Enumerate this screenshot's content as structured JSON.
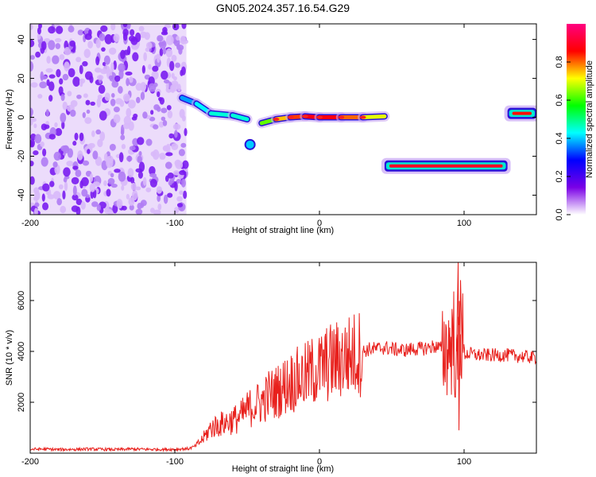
{
  "title": "GN05.2024.357.16.54.G29",
  "chart_data": [
    {
      "type": "heatmap",
      "panel": "spectrogram",
      "xlabel": "Height of straight line (km)",
      "ylabel": "Frequency (Hz)",
      "xlim": [
        -200,
        150
      ],
      "ylim": [
        -50,
        48
      ],
      "x_ticks": [
        -200,
        -100,
        0,
        100
      ],
      "y_ticks": [
        -40,
        -20,
        0,
        20,
        40
      ],
      "grid": false,
      "colorbar": {
        "label": "Normalized spectral amplitude",
        "range": [
          0,
          1
        ],
        "ticks": [
          0.0,
          0.2,
          0.4,
          0.6,
          0.8
        ],
        "colormap": [
          "#ffffff",
          "#7a00e6",
          "#0000ff",
          "#00ffff",
          "#00ff00",
          "#ffff00",
          "#ff0000",
          "#ff0080"
        ]
      },
      "features": [
        {
          "name": "noise",
          "x": [
            -200,
            -92
          ],
          "freq_range": [
            -50,
            48
          ],
          "amplitude": 0.1
        },
        {
          "name": "signal",
          "points": [
            {
              "x": -95,
              "f": 10,
              "a": 0.35
            },
            {
              "x": -85,
              "f": 7,
              "a": 0.4
            },
            {
              "x": -75,
              "f": 2,
              "a": 0.45
            },
            {
              "x": -60,
              "f": 1,
              "a": 0.45
            },
            {
              "x": -50,
              "f": -1,
              "a": 0.45
            },
            {
              "x": -48,
              "f": -14,
              "a": 0.4
            },
            {
              "x": -40,
              "f": -3,
              "a": 0.55
            },
            {
              "x": -30,
              "f": -1,
              "a": 0.7
            },
            {
              "x": -20,
              "f": 0,
              "a": 0.8
            },
            {
              "x": -10,
              "f": 0.5,
              "a": 0.85
            },
            {
              "x": 0,
              "f": 0,
              "a": 0.9
            },
            {
              "x": 15,
              "f": 0,
              "a": 0.85
            },
            {
              "x": 30,
              "f": 0,
              "a": 0.75
            },
            {
              "x": 45,
              "f": 0.5,
              "a": 0.65
            }
          ]
        },
        {
          "name": "band-low",
          "x": [
            45,
            130
          ],
          "f": -25,
          "amplitude": 0.9
        },
        {
          "name": "band-right",
          "x": [
            130,
            150
          ],
          "f": 2,
          "amplitude": 0.85
        }
      ]
    },
    {
      "type": "line",
      "panel": "snr",
      "xlabel": "Height of straight line (km)",
      "ylabel": "SNR (10 * v/v)",
      "xlim": [
        -200,
        150
      ],
      "ylim": [
        0,
        7500
      ],
      "x_ticks": [
        -200,
        -100,
        0,
        100
      ],
      "y_ticks": [
        2000,
        4000,
        6000
      ],
      "grid": false,
      "color": "#e8201c",
      "series": [
        {
          "x": [
            -200,
            -190,
            -180,
            -170,
            -160,
            -150,
            -140,
            -130,
            -120,
            -110,
            -100,
            -90,
            -85,
            -80,
            -75,
            -70,
            -65,
            -60,
            -55,
            -50,
            -45,
            -40,
            -35,
            -30,
            -25,
            -20,
            -15,
            -10,
            -5,
            0,
            5,
            10,
            15,
            20,
            25,
            30,
            35,
            40,
            45,
            50,
            55,
            60,
            65,
            70,
            75,
            80,
            85,
            90,
            93,
            95,
            97,
            100,
            105,
            110,
            120,
            130,
            140,
            150
          ],
          "y": [
            150,
            160,
            140,
            150,
            160,
            150,
            140,
            160,
            150,
            150,
            150,
            180,
            300,
            600,
            1000,
            1100,
            1200,
            1300,
            1400,
            1700,
            1900,
            2000,
            2300,
            2400,
            2600,
            2800,
            2900,
            3000,
            3200,
            3300,
            3500,
            3600,
            3700,
            3800,
            3900,
            4000,
            4100,
            4100,
            4150,
            4100,
            4050,
            4050,
            4100,
            4100,
            4150,
            4200,
            4100,
            4200,
            4500,
            3000,
            5200,
            3900,
            3900,
            3850,
            3850,
            3850,
            3800,
            3750
          ]
        }
      ]
    }
  ]
}
